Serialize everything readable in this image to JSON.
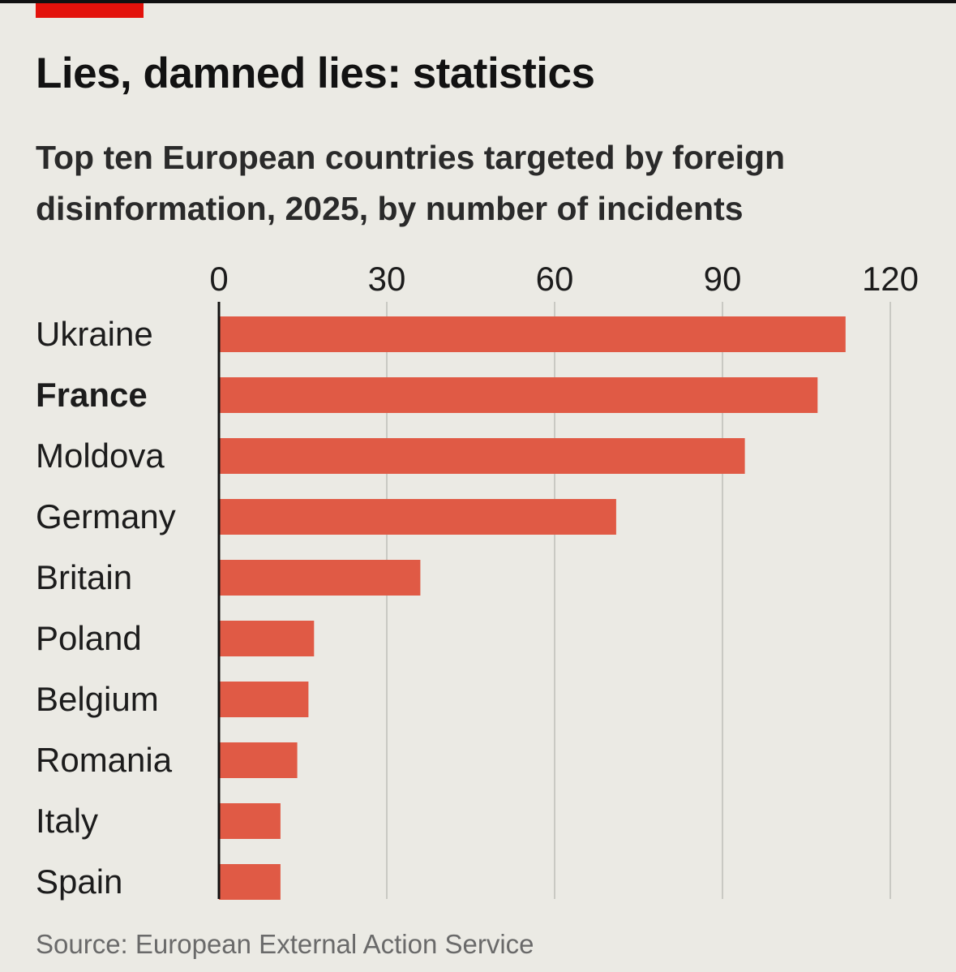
{
  "header": {
    "title": "Lies, damned lies: statistics",
    "subtitle_line1": "Top ten European countries targeted by foreign",
    "subtitle_line2": "disinformation, 2025, by number of incidents"
  },
  "source": "Source: European External Action Service",
  "colors": {
    "bar": "#e05a45",
    "accent": "#e3120b",
    "background": "#ebeae4",
    "grid": "#c9c9c3",
    "axis": "#111111"
  },
  "chart_data": {
    "type": "bar",
    "orientation": "horizontal",
    "title": "Lies, damned lies: statistics",
    "subtitle": "Top ten European countries targeted by foreign disinformation, 2025, by number of incidents",
    "categories": [
      "Ukraine",
      "France",
      "Moldova",
      "Germany",
      "Britain",
      "Poland",
      "Belgium",
      "Romania",
      "Italy",
      "Spain"
    ],
    "highlighted": [
      "France"
    ],
    "values": [
      112,
      107,
      94,
      71,
      36,
      17,
      16,
      14,
      11,
      11
    ],
    "xticks": [
      0,
      30,
      60,
      90,
      120
    ],
    "xlim": [
      0,
      120
    ],
    "xlabel": "",
    "ylabel": "",
    "grid": true,
    "xaxis_position": "top"
  }
}
